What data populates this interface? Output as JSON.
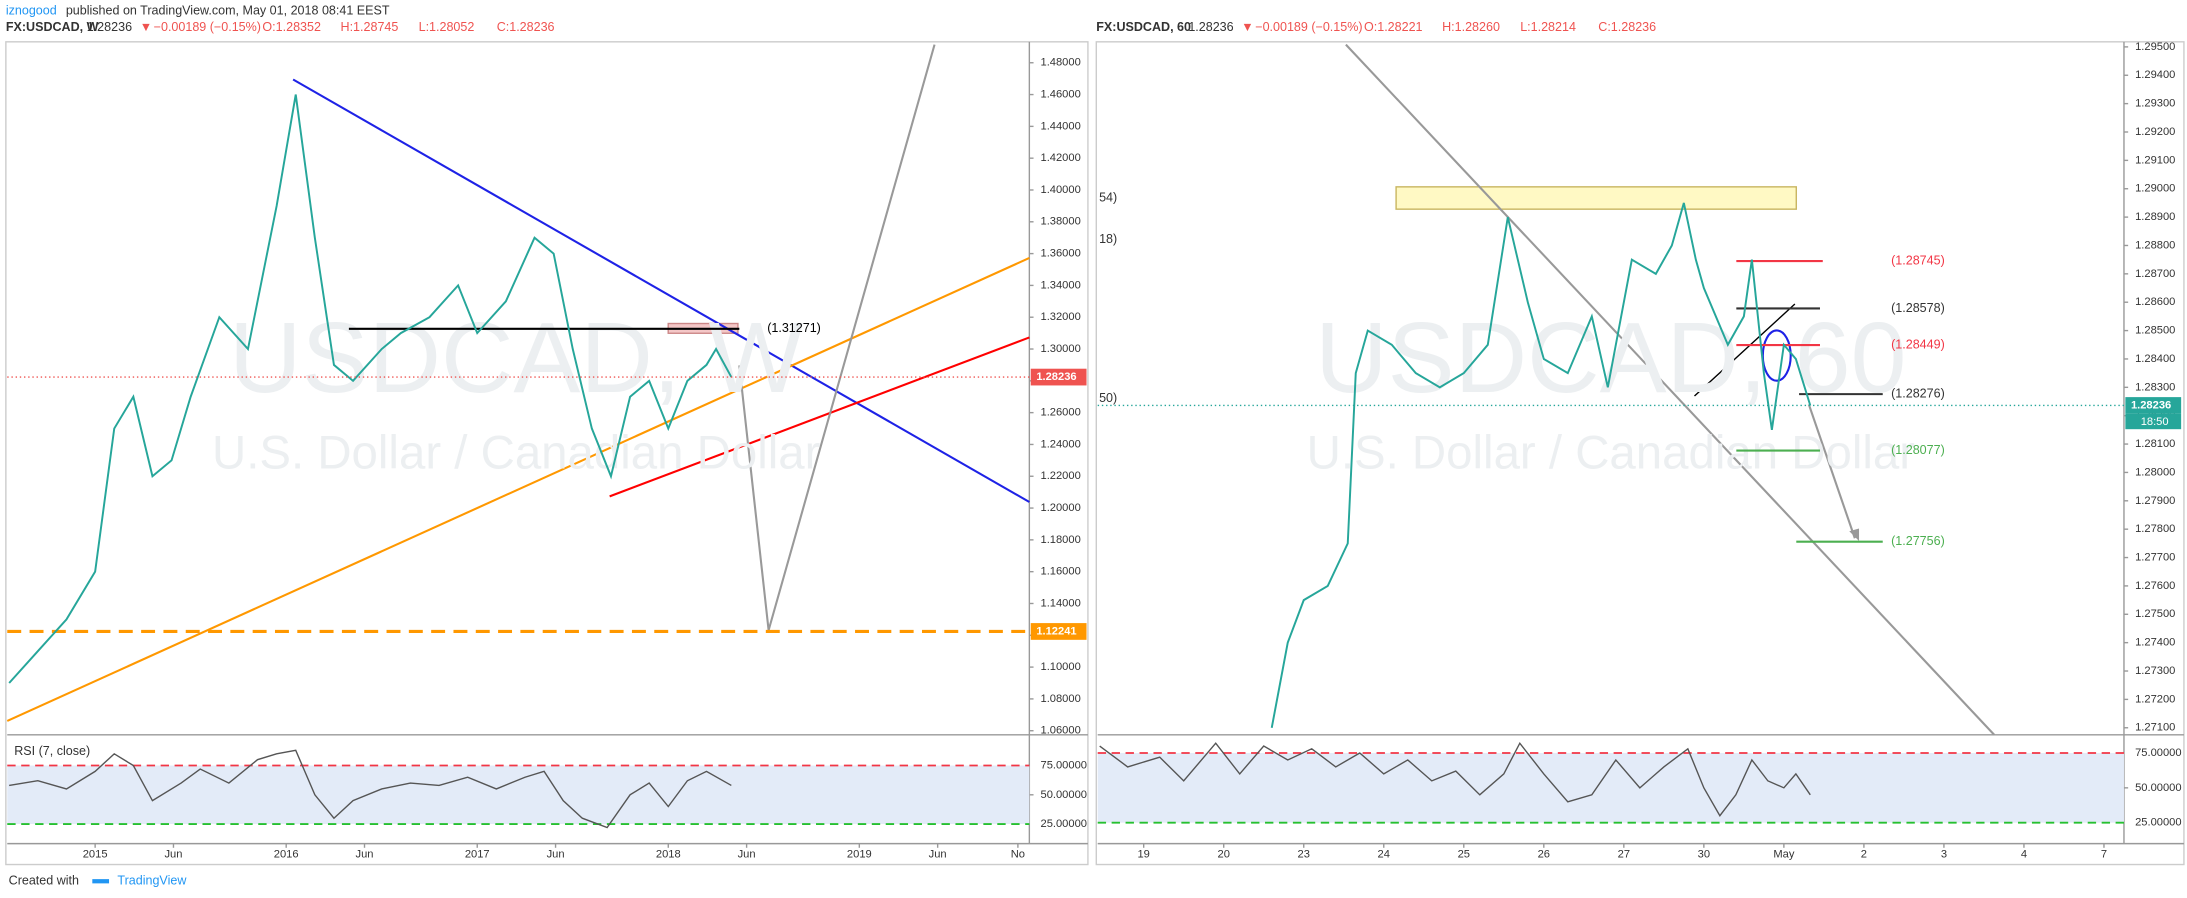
{
  "header": {
    "author": "iznogood",
    "published": "published on TradingView.com, May 01, 2018 08:41 EEST"
  },
  "footer": {
    "created": "Created with",
    "brand": "TradingView"
  },
  "chart_data": [
    {
      "type": "line",
      "title": "FX:USDCAD, W",
      "quote": {
        "last": "1.28236",
        "arrow": "▼",
        "change": "−0.00189 (−0.15%)",
        "open": "O:1.28352",
        "high": "H:1.28745",
        "low": "L:1.28052",
        "close": "C:1.28236"
      },
      "watermark": "USDCAD, W",
      "watermark_subtitle": "U.S. Dollar / Canadian Dollar",
      "x": [
        2014.55,
        2014.7,
        2014.85,
        2015.0,
        2015.1,
        2015.2,
        2015.3,
        2015.4,
        2015.5,
        2015.65,
        2015.8,
        2015.95,
        2016.05,
        2016.15,
        2016.25,
        2016.35,
        2016.5,
        2016.6,
        2016.75,
        2016.9,
        2017.0,
        2017.15,
        2017.3,
        2017.4,
        2017.5,
        2017.6,
        2017.7,
        2017.8,
        2017.9,
        2018.0,
        2018.1,
        2018.2,
        2018.25,
        2018.33
      ],
      "values": [
        1.09,
        1.11,
        1.13,
        1.16,
        1.25,
        1.27,
        1.22,
        1.23,
        1.27,
        1.32,
        1.3,
        1.39,
        1.46,
        1.37,
        1.29,
        1.28,
        1.3,
        1.31,
        1.32,
        1.34,
        1.31,
        1.33,
        1.37,
        1.36,
        1.3,
        1.25,
        1.22,
        1.27,
        1.28,
        1.25,
        1.28,
        1.29,
        1.3,
        1.28236
      ],
      "color": "#26a69a",
      "xlim": [
        2014.54,
        2019.89
      ],
      "xticks": [
        {
          "value": 2015,
          "label": "2015"
        },
        {
          "value": 2015.41,
          "label": "Jun"
        },
        {
          "value": 2016,
          "label": "2016"
        },
        {
          "value": 2016.41,
          "label": "Jun"
        },
        {
          "value": 2017,
          "label": "2017"
        },
        {
          "value": 2017.41,
          "label": "Jun"
        },
        {
          "value": 2018,
          "label": "2018"
        },
        {
          "value": 2018.41,
          "label": "Jun"
        },
        {
          "value": 2019,
          "label": "2019"
        },
        {
          "value": 2019.41,
          "label": "Jun"
        },
        {
          "value": 2019.83,
          "label": "No"
        }
      ],
      "ylim": [
        1.0574,
        1.4914
      ],
      "yticks": [
        {
          "value": 1.06,
          "label": "1.06000"
        },
        {
          "value": 1.08,
          "label": "1.08000"
        },
        {
          "value": 1.1,
          "label": "1.10000"
        },
        {
          "value": 1.12,
          "label": "1.12000"
        },
        {
          "value": 1.14,
          "label": "1.14000"
        },
        {
          "value": 1.16,
          "label": "1.16000"
        },
        {
          "value": 1.18,
          "label": "1.18000"
        },
        {
          "value": 1.2,
          "label": "1.20000"
        },
        {
          "value": 1.22,
          "label": "1.22000"
        },
        {
          "value": 1.24,
          "label": "1.24000"
        },
        {
          "value": 1.26,
          "label": "1.26000"
        },
        {
          "value": 1.28,
          "label": "1.28000"
        },
        {
          "value": 1.3,
          "label": "1.30000"
        },
        {
          "value": 1.32,
          "label": "1.32000"
        },
        {
          "value": 1.34,
          "label": "1.34000"
        },
        {
          "value": 1.36,
          "label": "1.36000"
        },
        {
          "value": 1.38,
          "label": "1.38000"
        },
        {
          "value": 1.4,
          "label": "1.40000"
        },
        {
          "value": 1.42,
          "label": "1.42000"
        },
        {
          "value": 1.44,
          "label": "1.44000"
        },
        {
          "value": 1.46,
          "label": "1.46000"
        },
        {
          "value": 1.48,
          "label": "1.48000"
        }
      ],
      "price_tags": [
        {
          "value": 1.28236,
          "label": "1.28236",
          "color": "#ef5350"
        },
        {
          "value": 1.12241,
          "label": "1.12241",
          "color": "#ff9800"
        }
      ],
      "levels": [
        {
          "value": 1.31271,
          "label": "(1.31271)",
          "color": "#000000"
        },
        {
          "value": 1.12241,
          "color": "#ff9800",
          "style": "dashed"
        }
      ],
      "rsi": {
        "title": "RSI (7, close)",
        "color": "#555555",
        "x": [
          2014.55,
          2014.7,
          2014.85,
          2015.0,
          2015.1,
          2015.2,
          2015.3,
          2015.45,
          2015.55,
          2015.7,
          2015.85,
          2015.95,
          2016.05,
          2016.15,
          2016.25,
          2016.35,
          2016.5,
          2016.65,
          2016.8,
          2016.95,
          2017.1,
          2017.25,
          2017.35,
          2017.45,
          2017.55,
          2017.68,
          2017.8,
          2017.9,
          2018.0,
          2018.1,
          2018.2,
          2018.33
        ],
        "values": [
          58,
          62,
          55,
          70,
          85,
          75,
          45,
          60,
          72,
          60,
          80,
          85,
          88,
          50,
          30,
          45,
          55,
          60,
          58,
          65,
          55,
          65,
          70,
          45,
          30,
          22,
          50,
          60,
          40,
          62,
          70,
          58
        ],
        "ylim": [
          8.3,
          101.2
        ],
        "yticks": [
          {
            "value": 25,
            "label": "25.00000"
          },
          {
            "value": 50,
            "label": "50.00000"
          },
          {
            "value": 75,
            "label": "75.00000"
          }
        ]
      }
    },
    {
      "type": "line",
      "title": "FX:USDCAD, 60",
      "quote": {
        "last": "1.28236",
        "arrow": "▼",
        "change": "−0.00189 (−0.15%)",
        "open": "O:1.28221",
        "high": "H:1.28260",
        "low": "L:1.28214",
        "close": "C:1.28236"
      },
      "watermark": "USDCAD, 60",
      "watermark_subtitle": "U.S. Dollar / Canadian Dollar",
      "edge_labels": [
        "54)",
        "18)",
        "50)"
      ],
      "x": [
        1.6,
        1.8,
        2.0,
        2.3,
        2.55,
        2.65,
        2.8,
        3.1,
        3.4,
        3.7,
        4.0,
        4.3,
        4.55,
        4.8,
        5.0,
        5.3,
        5.6,
        5.8,
        6.1,
        6.4,
        6.6,
        6.75,
        6.9,
        7.0,
        7.3,
        7.5,
        7.6,
        7.75,
        7.85,
        8.0,
        8.15,
        8.33
      ],
      "values": [
        1.271,
        1.274,
        1.2755,
        1.276,
        1.2775,
        1.2835,
        1.285,
        1.2845,
        1.2835,
        1.283,
        1.2835,
        1.2845,
        1.289,
        1.286,
        1.284,
        1.2835,
        1.2855,
        1.283,
        1.2875,
        1.287,
        1.288,
        1.2895,
        1.2875,
        1.2865,
        1.2845,
        1.2855,
        1.2875,
        1.2835,
        1.2815,
        1.2845,
        1.284,
        1.28236
      ],
      "color": "#26a69a",
      "xlim": [
        -0.575,
        12.25
      ],
      "xticks": [
        {
          "value": 0,
          "label": "19"
        },
        {
          "value": 1,
          "label": "20"
        },
        {
          "value": 2,
          "label": "23"
        },
        {
          "value": 3,
          "label": "24"
        },
        {
          "value": 4,
          "label": "25"
        },
        {
          "value": 5,
          "label": "26"
        },
        {
          "value": 6,
          "label": "27"
        },
        {
          "value": 7,
          "label": "30"
        },
        {
          "value": 8,
          "label": "May"
        },
        {
          "value": 9,
          "label": "2"
        },
        {
          "value": 10,
          "label": "3"
        },
        {
          "value": 11,
          "label": "4"
        },
        {
          "value": 12,
          "label": "7"
        }
      ],
      "ylim": [
        1.27075,
        1.29508
      ],
      "yticks": [
        {
          "value": 1.271,
          "label": "1.27100"
        },
        {
          "value": 1.272,
          "label": "1.27200"
        },
        {
          "value": 1.273,
          "label": "1.27300"
        },
        {
          "value": 1.274,
          "label": "1.27400"
        },
        {
          "value": 1.275,
          "label": "1.27500"
        },
        {
          "value": 1.276,
          "label": "1.27600"
        },
        {
          "value": 1.277,
          "label": "1.27700"
        },
        {
          "value": 1.278,
          "label": "1.27800"
        },
        {
          "value": 1.279,
          "label": "1.27900"
        },
        {
          "value": 1.28,
          "label": "1.28000"
        },
        {
          "value": 1.281,
          "label": "1.28100"
        },
        {
          "value": 1.282,
          "label": "1.28200"
        },
        {
          "value": 1.283,
          "label": "1.28300"
        },
        {
          "value": 1.284,
          "label": "1.28400"
        },
        {
          "value": 1.285,
          "label": "1.28500"
        },
        {
          "value": 1.286,
          "label": "1.28600"
        },
        {
          "value": 1.287,
          "label": "1.28700"
        },
        {
          "value": 1.288,
          "label": "1.28800"
        },
        {
          "value": 1.289,
          "label": "1.28900"
        },
        {
          "value": 1.29,
          "label": "1.29000"
        },
        {
          "value": 1.291,
          "label": "1.29100"
        },
        {
          "value": 1.292,
          "label": "1.29200"
        },
        {
          "value": 1.293,
          "label": "1.29300"
        },
        {
          "value": 1.294,
          "label": "1.29400"
        },
        {
          "value": 1.295,
          "label": "1.29500"
        }
      ],
      "price_tags": [
        {
          "value": 1.28236,
          "label": "1.28236",
          "color": "#26a69a"
        }
      ],
      "countdown": "18:50",
      "levels": [
        {
          "value": 1.28745,
          "label": "(1.28745)",
          "color": "#f23645"
        },
        {
          "value": 1.28578,
          "label": "(1.28578)",
          "color": "#333333"
        },
        {
          "value": 1.28449,
          "label": "(1.28449)",
          "color": "#f23645"
        },
        {
          "value": 1.28276,
          "label": "(1.28276)",
          "color": "#333333"
        },
        {
          "value": 1.28077,
          "label": "(1.28077)",
          "color": "#4caf50"
        },
        {
          "value": 1.27756,
          "label": "(1.27756)",
          "color": "#4caf50"
        }
      ],
      "rsi": {
        "color": "#555555",
        "x": [
          -0.55,
          -0.2,
          0.2,
          0.5,
          0.9,
          1.2,
          1.5,
          1.8,
          2.1,
          2.4,
          2.7,
          3.0,
          3.3,
          3.6,
          3.9,
          4.2,
          4.5,
          4.7,
          5.0,
          5.3,
          5.6,
          5.9,
          6.2,
          6.5,
          6.8,
          7.0,
          7.2,
          7.4,
          7.6,
          7.8,
          8.0,
          8.15,
          8.33
        ],
        "values": [
          80,
          65,
          72,
          55,
          82,
          60,
          80,
          70,
          78,
          65,
          75,
          60,
          70,
          55,
          62,
          45,
          60,
          82,
          60,
          40,
          45,
          70,
          50,
          65,
          78,
          50,
          30,
          45,
          70,
          55,
          50,
          60,
          45
        ],
        "ylim": [
          10,
          88
        ],
        "yticks": [
          {
            "value": 25,
            "label": "25.00000"
          },
          {
            "value": 50,
            "label": "50.00000"
          },
          {
            "value": 75,
            "label": "75.00000"
          }
        ]
      }
    }
  ]
}
